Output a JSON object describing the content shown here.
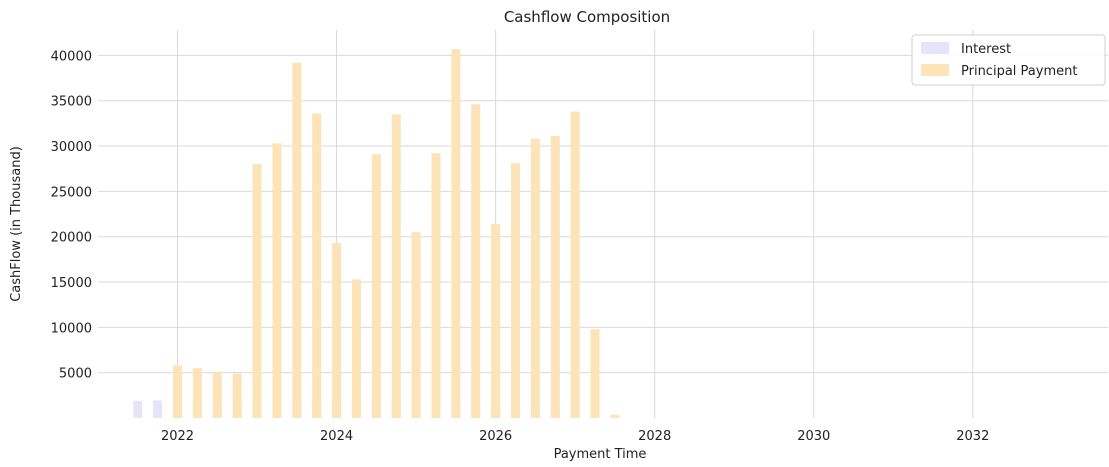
{
  "chart_data": {
    "type": "bar",
    "title": "Cashflow Composition",
    "xlabel": "Payment Time",
    "ylabel": "CashFlow (in Thousand)",
    "xlim": [
      2021.0,
      2033.7
    ],
    "ylim": [
      0,
      42800
    ],
    "x_ticks": [
      2022,
      2024,
      2026,
      2028,
      2030,
      2032
    ],
    "y_ticks": [
      5000,
      10000,
      15000,
      20000,
      25000,
      30000,
      35000,
      40000
    ],
    "grid": true,
    "legend_position": "top-right",
    "series": [
      {
        "name": "Interest",
        "color": "#e5e5fa",
        "x": [
          2021.5,
          2021.75,
          2022.0,
          2022.25,
          2022.5,
          2022.75,
          2023.0,
          2023.25,
          2023.5,
          2023.75,
          2024.0,
          2024.25,
          2024.5,
          2024.75,
          2025.0,
          2025.25,
          2025.5,
          2025.75,
          2026.0,
          2026.25,
          2026.5,
          2026.75,
          2027.0,
          2027.25
        ],
        "values": [
          1900,
          1950,
          1800,
          1750,
          1800,
          1900,
          2000,
          2050,
          2050,
          2050,
          2100,
          2050,
          2050,
          1950,
          1800,
          1650,
          1500,
          1350,
          1100,
          950,
          750,
          550,
          300,
          150
        ]
      },
      {
        "name": "Principal Payment",
        "color": "#fde3b8",
        "x": [
          2022.0,
          2022.25,
          2022.5,
          2022.75,
          2023.0,
          2023.25,
          2023.5,
          2023.75,
          2024.0,
          2024.25,
          2024.5,
          2024.75,
          2025.0,
          2025.25,
          2025.5,
          2025.75,
          2026.0,
          2026.25,
          2026.5,
          2026.75,
          2027.0,
          2027.25,
          2027.5
        ],
        "values": [
          5800,
          5500,
          5100,
          4900,
          28000,
          30300,
          39200,
          33600,
          19300,
          15300,
          29100,
          33500,
          20500,
          29200,
          40700,
          34600,
          21400,
          28100,
          30800,
          31100,
          33800,
          9800,
          350
        ]
      }
    ]
  }
}
